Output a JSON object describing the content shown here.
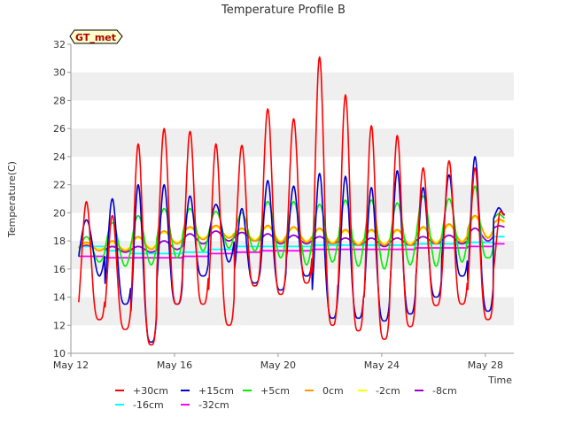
{
  "chart_data": {
    "type": "line",
    "title": "Temperature Profile B",
    "xlabel": "Time",
    "ylabel": "Temperature(C)",
    "site_badge": "GT_met",
    "ylim": [
      10,
      32
    ],
    "yticks": [
      10,
      12,
      14,
      16,
      18,
      20,
      22,
      24,
      26,
      28,
      30,
      32
    ],
    "xlim_days": [
      12,
      29.1
    ],
    "xticks": [
      {
        "day": 12,
        "label": "May 12"
      },
      {
        "day": 16,
        "label": "May 16"
      },
      {
        "day": 20,
        "label": "May 20"
      },
      {
        "day": 24,
        "label": "May 24"
      },
      {
        "day": 28,
        "label": "May 28"
      }
    ],
    "grid": "horizontal bands",
    "legend_position": "bottom",
    "x_start_day": 12.3,
    "x_end_day": 28.75,
    "series": [
      {
        "name": "+30cm",
        "color": "#ff0000",
        "daily_min": [
          12.4,
          11.7,
          10.6,
          13.5,
          13.5,
          12.0,
          14.8,
          14.2,
          15.0,
          12.0,
          11.6,
          11.0,
          11.9,
          13.4,
          13.5,
          12.4,
          15.0
        ],
        "daily_max": [
          20.8,
          19.8,
          24.9,
          26.0,
          25.8,
          24.9,
          24.8,
          27.4,
          26.7,
          31.1,
          28.4,
          26.2,
          25.5,
          23.2,
          23.7,
          23.2,
          20.2
        ],
        "end": 20.0
      },
      {
        "name": "+15cm",
        "color": "#0000cc",
        "daily_min": [
          15.5,
          13.5,
          10.8,
          13.5,
          15.5,
          16.5,
          15.0,
          14.5,
          15.5,
          12.5,
          12.5,
          12.3,
          12.8,
          14.0,
          15.5,
          13.0,
          19.0
        ],
        "daily_max": [
          19.5,
          21.0,
          22.0,
          22.0,
          21.2,
          20.6,
          20.3,
          22.3,
          21.9,
          22.8,
          22.6,
          21.8,
          23.0,
          21.8,
          22.7,
          24.0,
          20.5
        ],
        "end": 19.8
      },
      {
        "name": "+5cm",
        "color": "#00ee00",
        "daily_min": [
          16.5,
          16.2,
          16.3,
          16.8,
          17.3,
          17.5,
          17.3,
          16.8,
          16.3,
          16.5,
          16.2,
          16.0,
          16.3,
          16.2,
          16.5,
          16.8,
          19.3
        ],
        "daily_max": [
          18.3,
          19.3,
          19.8,
          20.3,
          20.3,
          20.1,
          20.0,
          20.8,
          20.8,
          20.6,
          20.9,
          20.9,
          20.7,
          21.2,
          21.0,
          21.9,
          20.0
        ],
        "end": 19.6
      },
      {
        "name": "0cm",
        "color": "#ff9900",
        "daily_min": [
          17.3,
          17.3,
          17.4,
          17.8,
          18.1,
          18.2,
          18.0,
          17.9,
          17.9,
          17.8,
          17.7,
          17.7,
          17.7,
          17.8,
          17.9,
          18.2,
          19.0
        ],
        "daily_max": [
          17.9,
          18.0,
          18.3,
          18.7,
          19.0,
          19.1,
          18.9,
          19.1,
          19.0,
          18.9,
          18.8,
          18.8,
          18.8,
          19.0,
          19.2,
          19.8,
          19.6
        ],
        "end": 19.4
      },
      {
        "name": "-2cm",
        "color": "#ffff00",
        "daily_min": [
          17.4,
          17.4,
          17.5,
          17.9,
          18.2,
          18.3,
          18.1,
          18.0,
          18.0,
          17.9,
          17.8,
          17.8,
          17.8,
          17.9,
          18.0,
          18.3,
          19.1
        ],
        "daily_max": [
          17.8,
          17.9,
          18.2,
          18.6,
          18.9,
          19.0,
          18.8,
          19.0,
          18.9,
          18.8,
          18.7,
          18.7,
          18.7,
          18.9,
          19.1,
          19.7,
          19.5
        ],
        "end": 19.3
      },
      {
        "name": "-8cm",
        "color": "#9900cc",
        "daily_min": [
          17.4,
          17.2,
          17.2,
          17.4,
          17.8,
          18.0,
          18.0,
          17.8,
          17.8,
          17.8,
          17.7,
          17.6,
          17.7,
          17.8,
          17.8,
          18.0,
          18.8
        ],
        "daily_max": [
          17.7,
          17.6,
          17.6,
          18.0,
          18.5,
          18.7,
          18.6,
          18.5,
          18.4,
          18.3,
          18.2,
          18.2,
          18.2,
          18.3,
          18.4,
          18.9,
          19.1
        ],
        "end": 19.0
      },
      {
        "name": "-16cm",
        "color": "#00ffff",
        "daily_min": [
          17.6,
          17.3,
          17.1,
          17.1,
          17.2,
          17.4,
          17.6,
          17.6,
          17.6,
          17.7,
          17.7,
          17.7,
          17.7,
          17.8,
          17.8,
          17.9,
          18.3
        ],
        "daily_max": [
          17.6,
          17.3,
          17.1,
          17.1,
          17.2,
          17.4,
          17.6,
          17.6,
          17.6,
          17.7,
          17.7,
          17.7,
          17.7,
          17.8,
          17.8,
          17.9,
          18.3
        ],
        "end": 18.3
      },
      {
        "name": "-32cm",
        "color": "#ff00ff",
        "daily_min": [
          16.9,
          16.8,
          16.8,
          16.8,
          16.9,
          17.1,
          17.2,
          17.3,
          17.3,
          17.4,
          17.4,
          17.4,
          17.4,
          17.5,
          17.5,
          17.6,
          17.8
        ],
        "daily_max": [
          16.9,
          16.8,
          16.8,
          16.8,
          16.9,
          17.1,
          17.2,
          17.3,
          17.3,
          17.4,
          17.4,
          17.4,
          17.4,
          17.5,
          17.5,
          17.6,
          17.8
        ],
        "end": 17.8
      }
    ]
  }
}
